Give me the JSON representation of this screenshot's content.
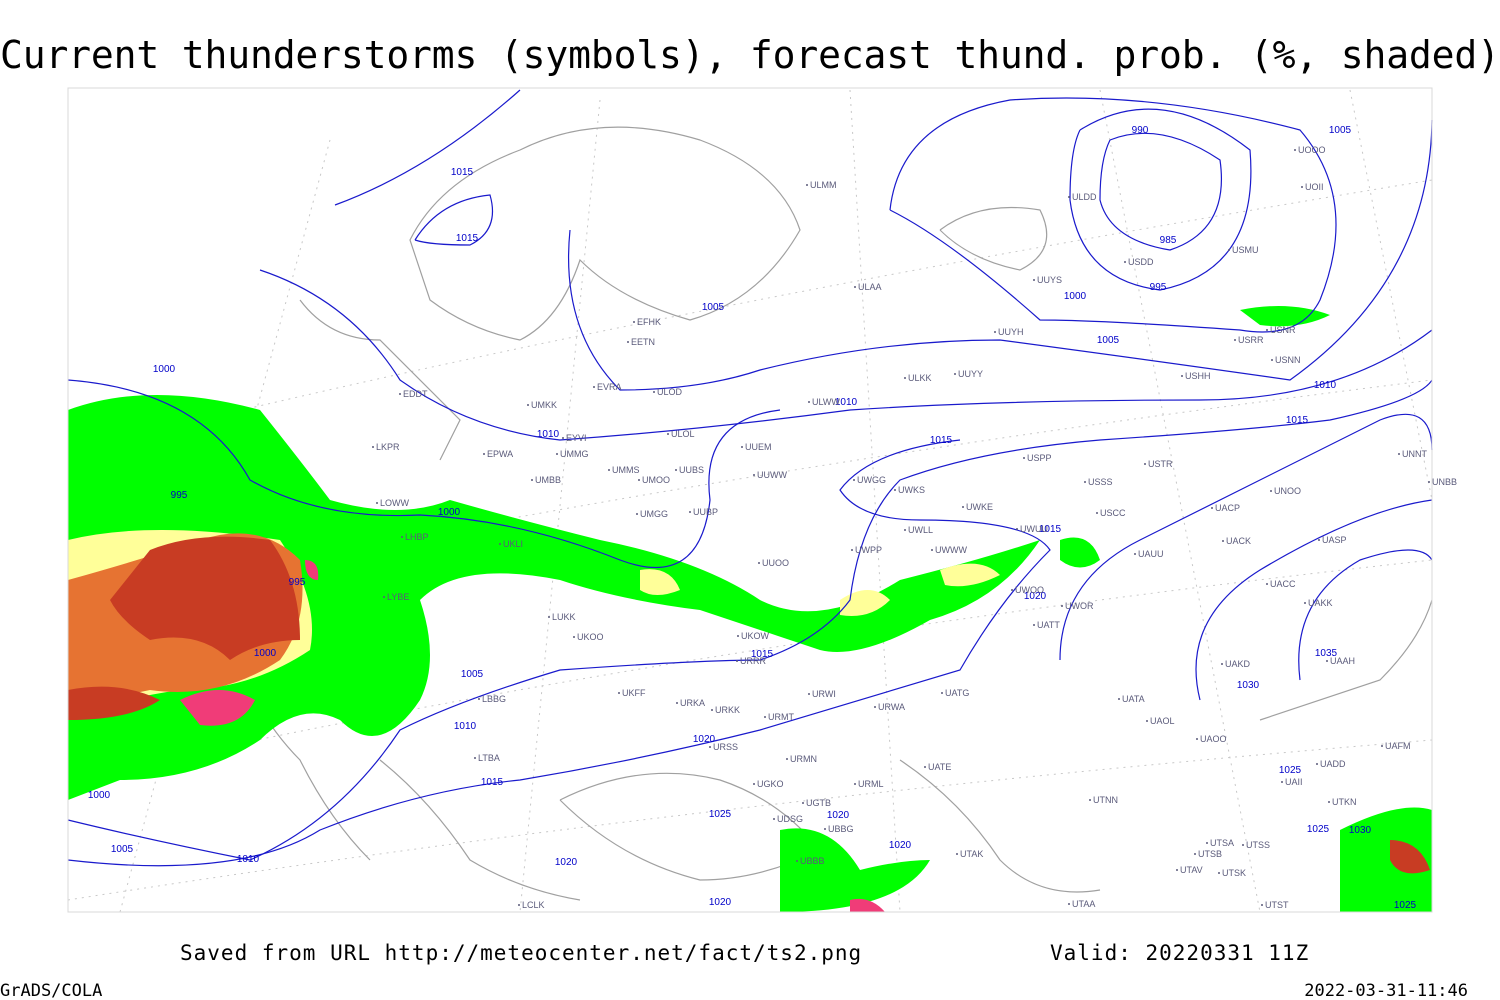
{
  "title": "Current thunderstorms (symbols), forecast thund. prob. (%, shaded)",
  "footer": {
    "saved_from": "Saved from URL http://meteocenter.net/fact/ts2.png",
    "valid": "Valid: 20220331 11Z",
    "software": "GrADS/COLA",
    "timestamp": "2022-03-31-11:46"
  },
  "stations": [
    "ULMM",
    "ULAA",
    "UUYS",
    "ULDD",
    "USDD",
    "USMU",
    "UOII",
    "UOOO",
    "USNR",
    "USRR",
    "USNN",
    "USHH",
    "UUYH",
    "UUYY",
    "ULKK",
    "ULWW",
    "ULOL",
    "UUEM",
    "UUWW",
    "UMMS",
    "UMOO",
    "UUBS",
    "UMBB",
    "UMGG",
    "UUBP",
    "UKLI",
    "UUOO",
    "UWPP",
    "UWKS",
    "UWGG",
    "UWKE",
    "UWLL",
    "UWWW",
    "UWUU",
    "UWOO",
    "UWOR",
    "UATT",
    "USPP",
    "USSS",
    "USCC",
    "USTR",
    "UAUU",
    "UACP",
    "UACK",
    "UNOO",
    "UASP",
    "UNNT",
    "UNBB",
    "UACC",
    "UAKK",
    "UAKD",
    "UAAH",
    "UATA",
    "UAOL",
    "UAOO",
    "UTNN",
    "UTSA",
    "UTSS",
    "UTSB",
    "UTAV",
    "UTSK",
    "UTAA",
    "UTST",
    "UAII",
    "UAFM",
    "UADD",
    "UTKN",
    "UATG",
    "URWA",
    "URWI",
    "URMT",
    "URMN",
    "URML",
    "UATE",
    "URSS",
    "UGKO",
    "UGTB",
    "UDSG",
    "UBBG",
    "UBBB",
    "UTAK",
    "UKFF",
    "URKA",
    "URKK",
    "URRR",
    "UKOW",
    "UKOO",
    "LUKK",
    "LYBE",
    "LHBP",
    "LOWW",
    "LKPR",
    "EPWA",
    "UMMG",
    "UMKK",
    "EETN",
    "EFHK",
    "EVRA",
    "ULOD",
    "EYVI",
    "EDDT",
    "LBBG",
    "LTBA",
    "LCLK"
  ],
  "isobar_labels": [
    1015,
    1015,
    990,
    985,
    995,
    1000,
    1005,
    1005,
    1005,
    1010,
    1010,
    1010,
    1015,
    1015,
    1000,
    995,
    1000,
    995,
    1000,
    1005,
    1010,
    1015,
    1000,
    1005,
    1010,
    1020,
    1020,
    1020,
    1025,
    1020,
    1020,
    1015,
    1015,
    1020,
    1030,
    1035,
    1025,
    1025,
    1030,
    1025
  ]
}
